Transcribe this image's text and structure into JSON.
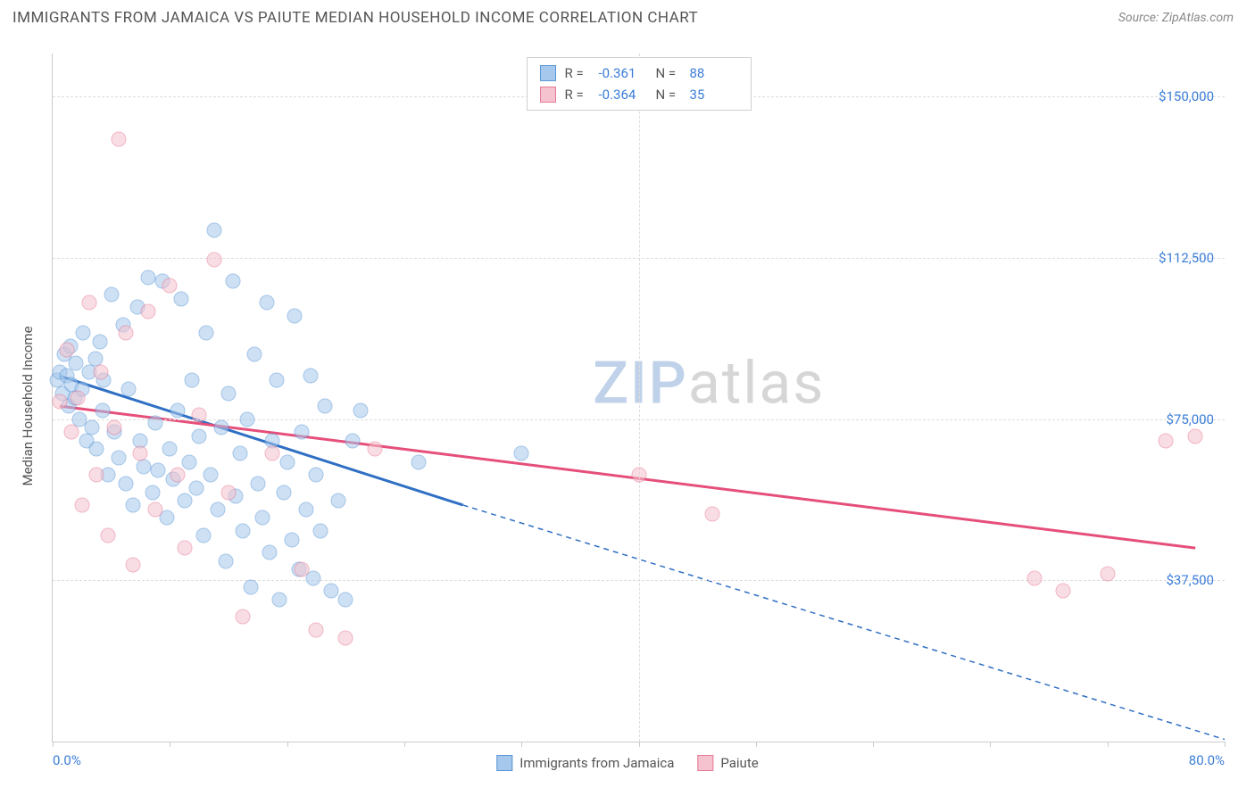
{
  "title": "IMMIGRANTS FROM JAMAICA VS PAIUTE MEDIAN HOUSEHOLD INCOME CORRELATION CHART",
  "source_label": "Source: ",
  "source_value": "ZipAtlas.com",
  "y_axis_label": "Median Household Income",
  "watermark_a": "ZIP",
  "watermark_b": "atlas",
  "chart": {
    "type": "scatter",
    "background_color": "#ffffff",
    "grid_color": "#dddddd",
    "axis_color": "#cccccc",
    "text_color": "#555555",
    "tick_label_color": "#3b7dd8",
    "xlim": [
      0,
      80
    ],
    "ylim": [
      0,
      160000
    ],
    "x_tick_positions": [
      0,
      8,
      16,
      24,
      32,
      40,
      48,
      56,
      64,
      72,
      80
    ],
    "x_tick_labels": {
      "0": "0.0%",
      "80": "80.0%"
    },
    "y_grid_positions": [
      37500,
      75000,
      112500,
      150000
    ],
    "y_tick_labels": {
      "37500": "$37,500",
      "75000": "$75,000",
      "112500": "$112,500",
      "150000": "$150,000"
    },
    "marker_size": 17,
    "marker_opacity": 0.55
  },
  "series": [
    {
      "id": "jamaica",
      "label": "Immigrants from Jamaica",
      "fill_color": "#a6c8ec",
      "border_color": "#5a96d6",
      "line_color": "#2f6fc4",
      "r_label": "R =",
      "r_value": "-0.361",
      "n_label": "N =",
      "n_value": "88",
      "trend": {
        "x1": 0.5,
        "y1": 85000,
        "x2_solid": 28,
        "y2_solid": 55000,
        "x2_dash": 80,
        "y2_dash": 500
      },
      "points": [
        [
          0.3,
          84000
        ],
        [
          0.5,
          86000
        ],
        [
          0.7,
          81000
        ],
        [
          0.8,
          90000
        ],
        [
          1.0,
          85000
        ],
        [
          1.1,
          78000
        ],
        [
          1.2,
          92000
        ],
        [
          1.3,
          83000
        ],
        [
          1.5,
          80000
        ],
        [
          1.6,
          88000
        ],
        [
          1.8,
          75000
        ],
        [
          2.0,
          82000
        ],
        [
          2.1,
          95000
        ],
        [
          2.3,
          70000
        ],
        [
          2.5,
          86000
        ],
        [
          2.7,
          73000
        ],
        [
          2.9,
          89000
        ],
        [
          3.0,
          68000
        ],
        [
          3.2,
          93000
        ],
        [
          3.4,
          77000
        ],
        [
          3.5,
          84000
        ],
        [
          3.8,
          62000
        ],
        [
          4.0,
          104000
        ],
        [
          4.2,
          72000
        ],
        [
          4.5,
          66000
        ],
        [
          4.8,
          97000
        ],
        [
          5.0,
          60000
        ],
        [
          5.2,
          82000
        ],
        [
          5.5,
          55000
        ],
        [
          5.8,
          101000
        ],
        [
          6.0,
          70000
        ],
        [
          6.2,
          64000
        ],
        [
          6.5,
          108000
        ],
        [
          6.8,
          58000
        ],
        [
          7.0,
          74000
        ],
        [
          7.2,
          63000
        ],
        [
          7.5,
          107000
        ],
        [
          7.8,
          52000
        ],
        [
          8.0,
          68000
        ],
        [
          8.2,
          61000
        ],
        [
          8.5,
          77000
        ],
        [
          8.8,
          103000
        ],
        [
          9.0,
          56000
        ],
        [
          9.3,
          65000
        ],
        [
          9.5,
          84000
        ],
        [
          9.8,
          59000
        ],
        [
          10.0,
          71000
        ],
        [
          10.3,
          48000
        ],
        [
          10.5,
          95000
        ],
        [
          10.8,
          62000
        ],
        [
          11.0,
          119000
        ],
        [
          11.3,
          54000
        ],
        [
          11.5,
          73000
        ],
        [
          11.8,
          42000
        ],
        [
          12.0,
          81000
        ],
        [
          12.3,
          107000
        ],
        [
          12.5,
          57000
        ],
        [
          12.8,
          67000
        ],
        [
          13.0,
          49000
        ],
        [
          13.3,
          75000
        ],
        [
          13.5,
          36000
        ],
        [
          13.8,
          90000
        ],
        [
          14.0,
          60000
        ],
        [
          14.3,
          52000
        ],
        [
          14.6,
          102000
        ],
        [
          14.8,
          44000
        ],
        [
          15.0,
          70000
        ],
        [
          15.3,
          84000
        ],
        [
          15.5,
          33000
        ],
        [
          15.8,
          58000
        ],
        [
          16.0,
          65000
        ],
        [
          16.3,
          47000
        ],
        [
          16.5,
          99000
        ],
        [
          16.8,
          40000
        ],
        [
          17.0,
          72000
        ],
        [
          17.3,
          54000
        ],
        [
          17.6,
          85000
        ],
        [
          17.8,
          38000
        ],
        [
          18.0,
          62000
        ],
        [
          18.3,
          49000
        ],
        [
          18.6,
          78000
        ],
        [
          19.0,
          35000
        ],
        [
          19.5,
          56000
        ],
        [
          20.0,
          33000
        ],
        [
          20.5,
          70000
        ],
        [
          21.0,
          77000
        ],
        [
          25.0,
          65000
        ],
        [
          32.0,
          67000
        ]
      ]
    },
    {
      "id": "paiute",
      "label": "Paiute",
      "fill_color": "#f4c3cf",
      "border_color": "#e77a95",
      "line_color": "#e54f7a",
      "r_label": "R =",
      "r_value": "-0.364",
      "n_label": "N =",
      "n_value": "35",
      "trend": {
        "x1": 0.5,
        "y1": 78000,
        "x2_solid": 78,
        "y2_solid": 45000,
        "x2_dash": 78,
        "y2_dash": 45000
      },
      "points": [
        [
          0.5,
          79000
        ],
        [
          1.0,
          91000
        ],
        [
          1.3,
          72000
        ],
        [
          1.7,
          80000
        ],
        [
          2.0,
          55000
        ],
        [
          2.5,
          102000
        ],
        [
          3.0,
          62000
        ],
        [
          3.3,
          86000
        ],
        [
          3.8,
          48000
        ],
        [
          4.2,
          73000
        ],
        [
          4.5,
          140000
        ],
        [
          5.0,
          95000
        ],
        [
          5.5,
          41000
        ],
        [
          6.0,
          67000
        ],
        [
          6.5,
          100000
        ],
        [
          7.0,
          54000
        ],
        [
          8.0,
          106000
        ],
        [
          8.5,
          62000
        ],
        [
          9.0,
          45000
        ],
        [
          10.0,
          76000
        ],
        [
          11.0,
          112000
        ],
        [
          12.0,
          58000
        ],
        [
          13.0,
          29000
        ],
        [
          15.0,
          67000
        ],
        [
          17.0,
          40000
        ],
        [
          18.0,
          26000
        ],
        [
          20.0,
          24000
        ],
        [
          22.0,
          68000
        ],
        [
          40.0,
          62000
        ],
        [
          45.0,
          53000
        ],
        [
          67.0,
          38000
        ],
        [
          69.0,
          35000
        ],
        [
          72.0,
          39000
        ],
        [
          76.0,
          70000
        ],
        [
          78.0,
          71000
        ]
      ]
    }
  ],
  "legend_bottom": [
    {
      "ref": "jamaica"
    },
    {
      "ref": "paiute"
    }
  ]
}
